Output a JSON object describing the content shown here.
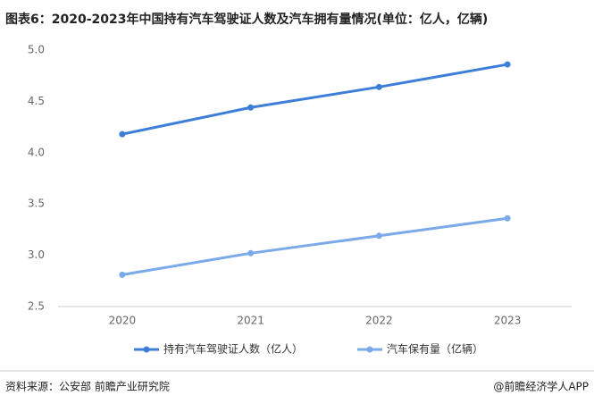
{
  "chart_data": {
    "type": "line",
    "title": "图表6：2020-2023年中国持有汽车驾驶证人数及汽车拥有量情况(单位：亿人，亿辆)",
    "categories": [
      "2020",
      "2021",
      "2022",
      "2023"
    ],
    "series": [
      {
        "name": "持有汽车驾驶证人数（亿人）",
        "color": "#3d7fd8",
        "values": [
          4.18,
          4.44,
          4.64,
          4.86
        ]
      },
      {
        "name": "汽车保有量（亿辆）",
        "color": "#7aaae8",
        "values": [
          2.81,
          3.02,
          3.19,
          3.36
        ]
      }
    ],
    "ylim": [
      2.5,
      5.0
    ],
    "yticks": [
      2.5,
      {
        "value": 3,
        "label": "3.0"
      },
      3.5,
      {
        "value": 4,
        "label": "4.0"
      },
      4.5,
      {
        "value": 5,
        "label": "5.0"
      }
    ],
    "grid": false,
    "legend": "bottom"
  },
  "source": "资料来源：公安部 前瞻产业研究院",
  "credit": "@前瞻经济学人APP"
}
